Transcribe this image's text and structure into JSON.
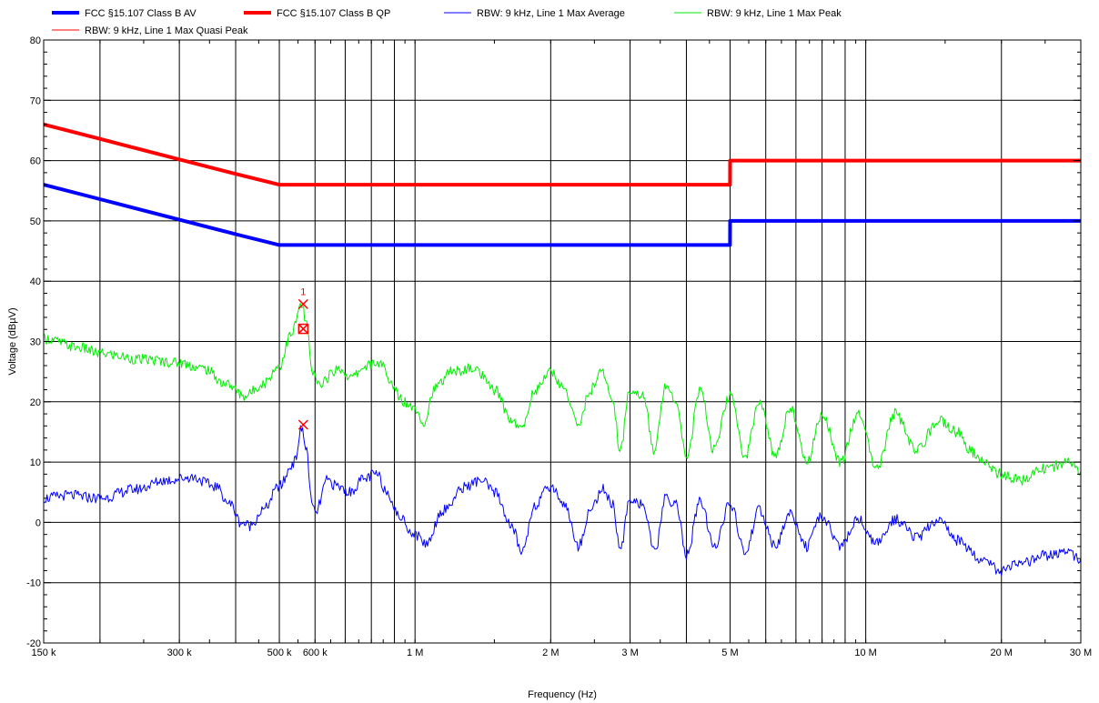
{
  "chart_data": {
    "type": "line",
    "x_scale": "log",
    "xlabel": "Frequency (Hz)",
    "ylabel": "Voltage (dBµV)",
    "xlim": [
      150000,
      30000000
    ],
    "ylim": [
      -20,
      80
    ],
    "grid": true,
    "legend_position": "top",
    "x_ticks": [
      {
        "value": 150000,
        "label": "150 k"
      },
      {
        "value": 300000,
        "label": "300 k"
      },
      {
        "value": 500000,
        "label": "500 k"
      },
      {
        "value": 600000,
        "label": "600 k"
      },
      {
        "value": 1000000,
        "label": "1 M"
      },
      {
        "value": 2000000,
        "label": "2 M"
      },
      {
        "value": 3000000,
        "label": "3 M"
      },
      {
        "value": 5000000,
        "label": "5 M"
      },
      {
        "value": 10000000,
        "label": "10 M"
      },
      {
        "value": 20000000,
        "label": "20 M"
      },
      {
        "value": 30000000,
        "label": "30 M"
      }
    ],
    "y_ticks": [
      -20,
      -10,
      0,
      10,
      20,
      30,
      40,
      50,
      60,
      70,
      80
    ],
    "series": [
      {
        "name": "FCC §15.107 Class B AV",
        "color": "#0000ff",
        "points": [
          [
            150000,
            56
          ],
          [
            200000,
            53.6
          ],
          [
            300000,
            50.2
          ],
          [
            400000,
            47.8
          ],
          [
            500000,
            46
          ],
          [
            4999000,
            46
          ],
          [
            5000000,
            50
          ],
          [
            30000000,
            50
          ]
        ]
      },
      {
        "name": "FCC §15.107 Class B QP",
        "color": "#ff0000",
        "points": [
          [
            150000,
            66
          ],
          [
            200000,
            63.6
          ],
          [
            300000,
            60.2
          ],
          [
            400000,
            57.8
          ],
          [
            500000,
            56
          ],
          [
            4999000,
            56
          ],
          [
            5000000,
            60
          ],
          [
            30000000,
            60
          ]
        ]
      },
      {
        "name": "RBW: 9 kHz, Line 1 Max Average",
        "color": "#0000ff",
        "points": [
          [
            150000,
            4
          ],
          [
            170000,
            4.5
          ],
          [
            200000,
            4
          ],
          [
            240000,
            5.5
          ],
          [
            280000,
            7
          ],
          [
            320000,
            7.5
          ],
          [
            360000,
            6
          ],
          [
            390000,
            3
          ],
          [
            410000,
            0
          ],
          [
            430000,
            -0.5
          ],
          [
            460000,
            2
          ],
          [
            500000,
            6
          ],
          [
            540000,
            10
          ],
          [
            560000,
            15.5
          ],
          [
            575000,
            12
          ],
          [
            590000,
            3
          ],
          [
            600000,
            1.5
          ],
          [
            640000,
            7
          ],
          [
            670000,
            6
          ],
          [
            720000,
            5
          ],
          [
            760000,
            7
          ],
          [
            820000,
            8
          ],
          [
            870000,
            5
          ],
          [
            920000,
            1
          ],
          [
            1000000,
            -2
          ],
          [
            1060000,
            -3.5
          ],
          [
            1150000,
            2
          ],
          [
            1300000,
            6
          ],
          [
            1400000,
            7
          ],
          [
            1500000,
            5
          ],
          [
            1650000,
            -1
          ],
          [
            1720000,
            -5
          ],
          [
            1850000,
            3
          ],
          [
            2000000,
            6
          ],
          [
            2150000,
            3
          ],
          [
            2300000,
            -4
          ],
          [
            2450000,
            2
          ],
          [
            2600000,
            5.5
          ],
          [
            2750000,
            3
          ],
          [
            2850000,
            -5
          ],
          [
            3000000,
            4
          ],
          [
            3200000,
            3
          ],
          [
            3400000,
            -5
          ],
          [
            3600000,
            4
          ],
          [
            3800000,
            3
          ],
          [
            4000000,
            -5.5
          ],
          [
            4300000,
            3.5
          ],
          [
            4600000,
            -4
          ],
          [
            5000000,
            3
          ],
          [
            5400000,
            -5
          ],
          [
            5800000,
            2
          ],
          [
            6300000,
            -4
          ],
          [
            6800000,
            1.5
          ],
          [
            7400000,
            -4
          ],
          [
            8000000,
            1
          ],
          [
            8800000,
            -4
          ],
          [
            9600000,
            0.5
          ],
          [
            10600000,
            -3.5
          ],
          [
            11600000,
            0.5
          ],
          [
            13000000,
            -2.5
          ],
          [
            14500000,
            0.5
          ],
          [
            16000000,
            -3
          ],
          [
            18000000,
            -6
          ],
          [
            20000000,
            -8
          ],
          [
            22000000,
            -7
          ],
          [
            25000000,
            -5.5
          ],
          [
            28000000,
            -5
          ],
          [
            30000000,
            -6
          ]
        ]
      },
      {
        "name": "RBW: 9 kHz, Line 1 Max Peak",
        "color": "#00ee00",
        "points": [
          [
            150000,
            30.5
          ],
          [
            180000,
            29
          ],
          [
            200000,
            28
          ],
          [
            250000,
            27
          ],
          [
            300000,
            26.5
          ],
          [
            340000,
            25.5
          ],
          [
            380000,
            23
          ],
          [
            420000,
            21
          ],
          [
            460000,
            23
          ],
          [
            500000,
            26
          ],
          [
            530000,
            31
          ],
          [
            560000,
            36
          ],
          [
            575000,
            33
          ],
          [
            590000,
            25
          ],
          [
            610000,
            23
          ],
          [
            680000,
            25.5
          ],
          [
            720000,
            24
          ],
          [
            780000,
            26
          ],
          [
            840000,
            26.5
          ],
          [
            880000,
            23
          ],
          [
            950000,
            20
          ],
          [
            1000000,
            19
          ],
          [
            1050000,
            16.5
          ],
          [
            1100000,
            22
          ],
          [
            1200000,
            25
          ],
          [
            1350000,
            25.5
          ],
          [
            1500000,
            22
          ],
          [
            1640000,
            17
          ],
          [
            1720000,
            15.5
          ],
          [
            1850000,
            22
          ],
          [
            2000000,
            25
          ],
          [
            2150000,
            22
          ],
          [
            2300000,
            16
          ],
          [
            2450000,
            22
          ],
          [
            2600000,
            25
          ],
          [
            2750000,
            20
          ],
          [
            2850000,
            12
          ],
          [
            3000000,
            22
          ],
          [
            3200000,
            21
          ],
          [
            3400000,
            12
          ],
          [
            3600000,
            23
          ],
          [
            3800000,
            20
          ],
          [
            4000000,
            11
          ],
          [
            4300000,
            22
          ],
          [
            4600000,
            12
          ],
          [
            5000000,
            21
          ],
          [
            5400000,
            11
          ],
          [
            5800000,
            20
          ],
          [
            6300000,
            11
          ],
          [
            6800000,
            19
          ],
          [
            7400000,
            10
          ],
          [
            8000000,
            18
          ],
          [
            8800000,
            10
          ],
          [
            9600000,
            18
          ],
          [
            10600000,
            9
          ],
          [
            11600000,
            18
          ],
          [
            13000000,
            12
          ],
          [
            14500000,
            17
          ],
          [
            16000000,
            15
          ],
          [
            17000000,
            12
          ],
          [
            18000000,
            10
          ],
          [
            20000000,
            8
          ],
          [
            22000000,
            7
          ],
          [
            25000000,
            9
          ],
          [
            28000000,
            10
          ],
          [
            30000000,
            8.5
          ]
        ]
      }
    ],
    "legend_extra": [
      {
        "name": "RBW: 9 kHz, Line 1 Max Quasi Peak",
        "color": "#ff0000"
      }
    ],
    "markers": [
      {
        "label": "1",
        "x": 565000,
        "y": 36.2,
        "symbol": "x",
        "color": "#ff0000"
      },
      {
        "label": "",
        "x": 565000,
        "y": 32.1,
        "symbol": "boxed-x",
        "color": "#ff0000"
      },
      {
        "label": "",
        "x": 565000,
        "y": 16.2,
        "symbol": "x",
        "color": "#ff0000"
      }
    ]
  }
}
